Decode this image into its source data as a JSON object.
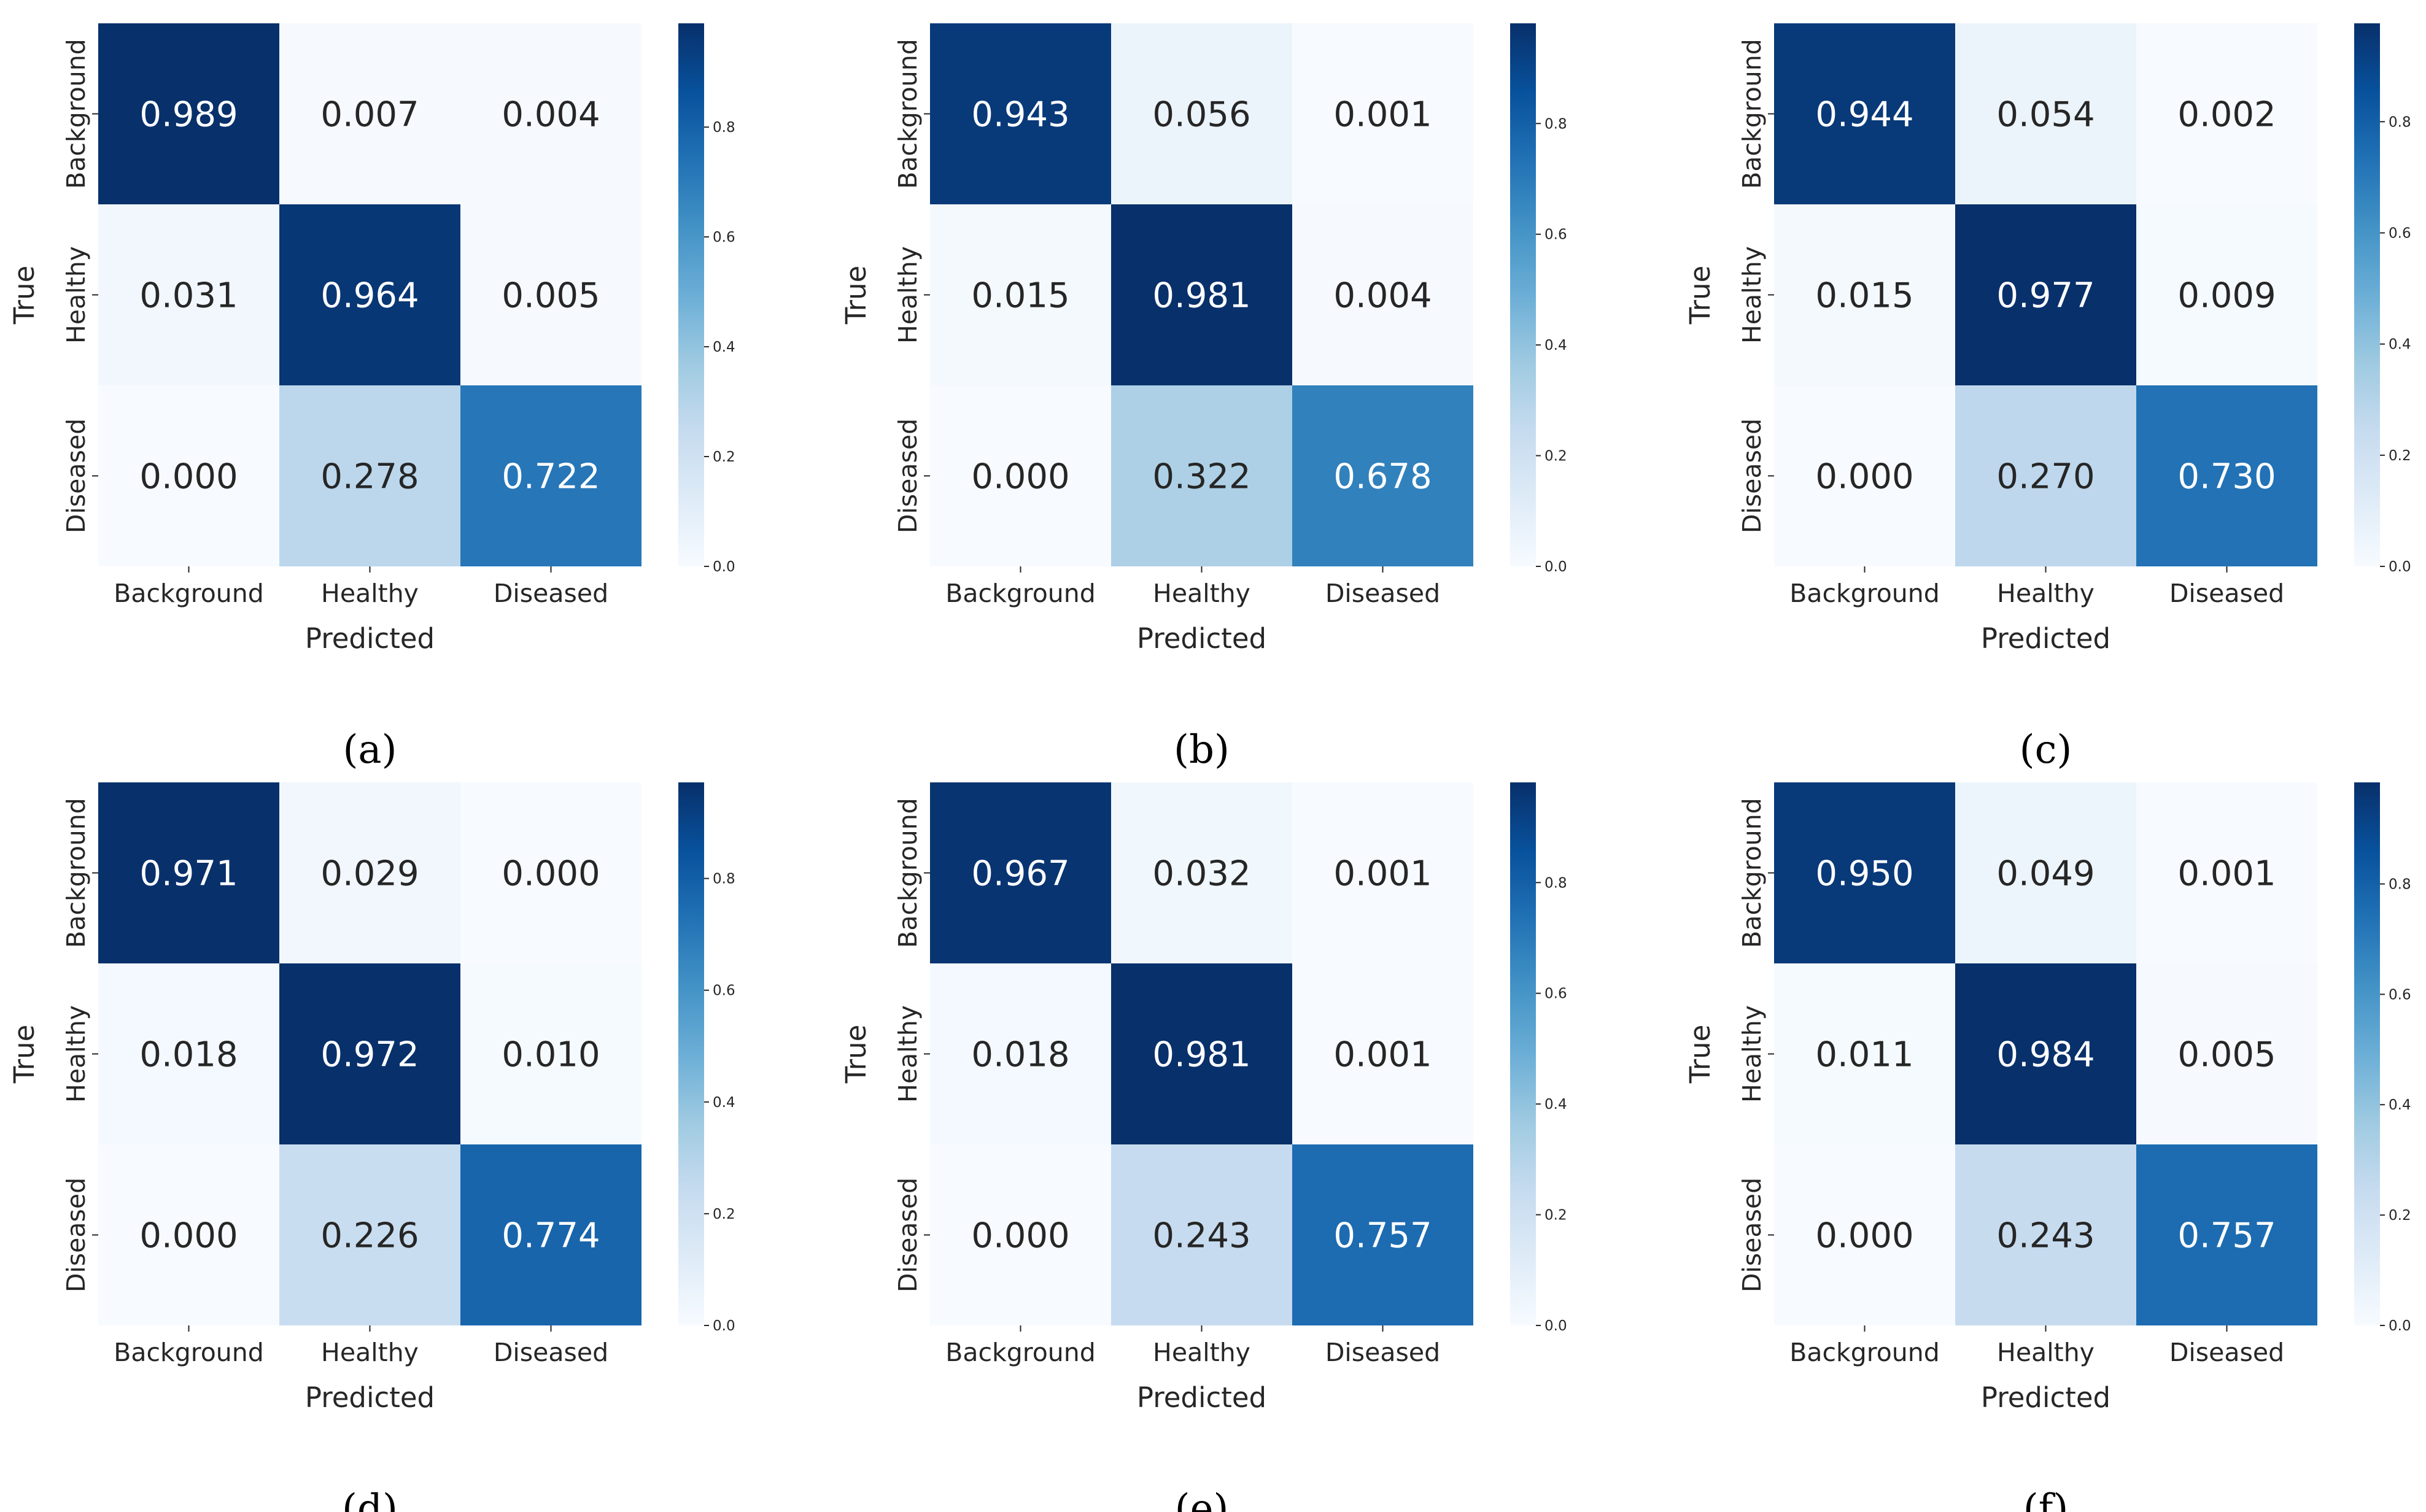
{
  "chart_data": [
    {
      "type": "heatmap",
      "panel_label": "(a)",
      "panel_letter": "a",
      "x_categories": [
        "Background",
        "Healthy",
        "Diseased"
      ],
      "y_categories": [
        "Background",
        "Healthy",
        "Diseased"
      ],
      "xlabel": "Predicted",
      "ylabel": "True",
      "values": [
        [
          0.989,
          0.007,
          0.004
        ],
        [
          0.031,
          0.964,
          0.005
        ],
        [
          0.0,
          0.278,
          0.722
        ]
      ],
      "value_labels": [
        [
          "0.989",
          "0.007",
          "0.004"
        ],
        [
          "0.031",
          "0.964",
          "0.005"
        ],
        [
          "0.000",
          "0.278",
          "0.722"
        ]
      ],
      "colorbar": {
        "range": [
          0,
          0.989
        ],
        "ticks": [
          "0.0",
          "0.2",
          "0.4",
          "0.6",
          "0.8"
        ]
      }
    },
    {
      "type": "heatmap",
      "panel_label": "(b)",
      "panel_letter": "b",
      "x_categories": [
        "Background",
        "Healthy",
        "Diseased"
      ],
      "y_categories": [
        "Background",
        "Healthy",
        "Diseased"
      ],
      "xlabel": "Predicted",
      "ylabel": "True",
      "values": [
        [
          0.943,
          0.056,
          0.001
        ],
        [
          0.015,
          0.981,
          0.004
        ],
        [
          0.0,
          0.322,
          0.678
        ]
      ],
      "value_labels": [
        [
          "0.943",
          "0.056",
          "0.001"
        ],
        [
          "0.015",
          "0.981",
          "0.004"
        ],
        [
          "0.000",
          "0.322",
          "0.678"
        ]
      ],
      "colorbar": {
        "range": [
          0,
          0.981
        ],
        "ticks": [
          "0.0",
          "0.2",
          "0.4",
          "0.6",
          "0.8"
        ]
      }
    },
    {
      "type": "heatmap",
      "panel_label": "(c)",
      "panel_letter": "c",
      "x_categories": [
        "Background",
        "Healthy",
        "Diseased"
      ],
      "y_categories": [
        "Background",
        "Healthy",
        "Diseased"
      ],
      "xlabel": "Predicted",
      "ylabel": "True",
      "values": [
        [
          0.944,
          0.054,
          0.002
        ],
        [
          0.015,
          0.977,
          0.009
        ],
        [
          0.0,
          0.27,
          0.73
        ]
      ],
      "value_labels": [
        [
          "0.944",
          "0.054",
          "0.002"
        ],
        [
          "0.015",
          "0.977",
          "0.009"
        ],
        [
          "0.000",
          "0.270",
          "0.730"
        ]
      ],
      "colorbar": {
        "range": [
          0,
          0.977
        ],
        "ticks": [
          "0.0",
          "0.2",
          "0.4",
          "0.6",
          "0.8"
        ]
      }
    },
    {
      "type": "heatmap",
      "panel_label": "(d)",
      "panel_letter": "d",
      "x_categories": [
        "Background",
        "Healthy",
        "Diseased"
      ],
      "y_categories": [
        "Background",
        "Healthy",
        "Diseased"
      ],
      "xlabel": "Predicted",
      "ylabel": "True",
      "values": [
        [
          0.971,
          0.029,
          0.0
        ],
        [
          0.018,
          0.972,
          0.01
        ],
        [
          0.0,
          0.226,
          0.774
        ]
      ],
      "value_labels": [
        [
          "0.971",
          "0.029",
          "0.000"
        ],
        [
          "0.018",
          "0.972",
          "0.010"
        ],
        [
          "0.000",
          "0.226",
          "0.774"
        ]
      ],
      "colorbar": {
        "range": [
          0,
          0.972
        ],
        "ticks": [
          "0.0",
          "0.2",
          "0.4",
          "0.6",
          "0.8"
        ]
      }
    },
    {
      "type": "heatmap",
      "panel_label": "(e)",
      "panel_letter": "e",
      "x_categories": [
        "Background",
        "Healthy",
        "Diseased"
      ],
      "y_categories": [
        "Background",
        "Healthy",
        "Diseased"
      ],
      "xlabel": "Predicted",
      "ylabel": "True",
      "values": [
        [
          0.967,
          0.032,
          0.001
        ],
        [
          0.018,
          0.981,
          0.001
        ],
        [
          0.0,
          0.243,
          0.757
        ]
      ],
      "value_labels": [
        [
          "0.967",
          "0.032",
          "0.001"
        ],
        [
          "0.018",
          "0.981",
          "0.001"
        ],
        [
          "0.000",
          "0.243",
          "0.757"
        ]
      ],
      "colorbar": {
        "range": [
          0,
          0.981
        ],
        "ticks": [
          "0.0",
          "0.2",
          "0.4",
          "0.6",
          "0.8"
        ]
      }
    },
    {
      "type": "heatmap",
      "panel_label": "(f)",
      "panel_letter": "f",
      "x_categories": [
        "Background",
        "Healthy",
        "Diseased"
      ],
      "y_categories": [
        "Background",
        "Healthy",
        "Diseased"
      ],
      "xlabel": "Predicted",
      "ylabel": "True",
      "values": [
        [
          0.95,
          0.049,
          0.001
        ],
        [
          0.011,
          0.984,
          0.005
        ],
        [
          0.0,
          0.243,
          0.757
        ]
      ],
      "value_labels": [
        [
          "0.950",
          "0.049",
          "0.001"
        ],
        [
          "0.011",
          "0.984",
          "0.005"
        ],
        [
          "0.000",
          "0.243",
          "0.757"
        ]
      ],
      "colorbar": {
        "range": [
          0,
          0.984
        ],
        "ticks": [
          "0.0",
          "0.2",
          "0.4",
          "0.6",
          "0.8"
        ]
      }
    }
  ]
}
